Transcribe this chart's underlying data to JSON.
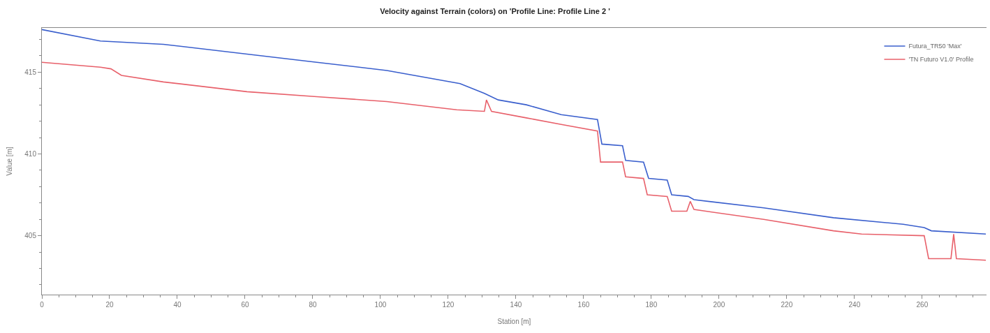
{
  "chart_data": {
    "type": "line",
    "title": "Velocity against Terrain (colors) on 'Profile Line: Profile Line 2 '",
    "xlabel": "Station [m]",
    "ylabel": "Value [m]",
    "xlim": [
      0,
      279
    ],
    "ylim": [
      401.4,
      417.7
    ],
    "xticks": [
      0,
      20,
      40,
      60,
      80,
      100,
      120,
      140,
      160,
      180,
      200,
      220,
      240,
      260
    ],
    "yticks": [
      405,
      410,
      415
    ],
    "legend": "top right",
    "marker": "none",
    "line_style": "solid",
    "series": [
      {
        "name": "Futura_TR50 'Max'",
        "color": "#3a5fcd",
        "x": [
          0,
          17.3,
          35.9,
          81.2,
          101.9,
          123.5,
          130.7,
          134.8,
          143.1,
          153.4,
          164.1,
          165.4,
          171.5,
          172.4,
          177.7,
          179.2,
          184.7,
          186.0,
          190.9,
          192.6,
          213.2,
          233.8,
          254.4,
          260.6,
          262.7,
          278.8
        ],
        "values": [
          417.6,
          416.9,
          416.7,
          415.6,
          415.1,
          414.3,
          413.7,
          413.3,
          413.0,
          412.4,
          412.1,
          410.6,
          410.5,
          409.6,
          409.5,
          408.5,
          408.4,
          407.5,
          407.4,
          407.2,
          406.7,
          406.1,
          405.7,
          405.5,
          405.3,
          405.1
        ]
      },
      {
        "name": "'TN Futuro V1.0' Profile",
        "color": "#e8606a",
        "x": [
          0,
          17.3,
          20.4,
          23.5,
          35.9,
          60.6,
          81.2,
          101.9,
          122.5,
          130.7,
          131.3,
          132.8,
          143.1,
          153.4,
          164.1,
          165.0,
          171.5,
          172.4,
          177.7,
          178.8,
          184.7,
          186.0,
          190.5,
          191.5,
          192.6,
          213.2,
          233.8,
          242.1,
          260.6,
          261.9,
          268.5,
          269.3,
          270.1,
          278.8
        ],
        "values": [
          415.6,
          415.3,
          415.2,
          414.8,
          414.4,
          413.8,
          413.5,
          413.2,
          412.7,
          412.6,
          413.3,
          412.6,
          412.2,
          411.8,
          411.4,
          409.5,
          409.5,
          408.6,
          408.5,
          407.5,
          407.4,
          406.5,
          406.5,
          407.1,
          406.6,
          406.0,
          405.3,
          405.1,
          405.0,
          403.6,
          403.6,
          405.1,
          403.6,
          403.5
        ]
      }
    ]
  }
}
